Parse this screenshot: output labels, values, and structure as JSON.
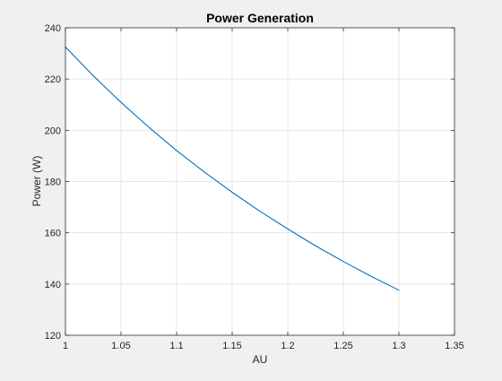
{
  "chart_data": {
    "type": "line",
    "title": "Power Generation",
    "xlabel": "AU",
    "ylabel": "Power (W)",
    "xlim": [
      1,
      1.35
    ],
    "ylim": [
      120,
      240
    ],
    "xticks": [
      "1",
      "1.05",
      "1.1",
      "1.15",
      "1.2",
      "1.25",
      "1.3",
      "1.35"
    ],
    "yticks": [
      "120",
      "140",
      "160",
      "180",
      "200",
      "220",
      "240"
    ],
    "grid": true,
    "series": [
      {
        "color": "#0072bd",
        "x": [
          1.0,
          1.025,
          1.05,
          1.075,
          1.1,
          1.125,
          1.15,
          1.175,
          1.2,
          1.225,
          1.25,
          1.275,
          1.3
        ],
        "y": [
          232.5,
          221.3,
          210.9,
          201.2,
          192.1,
          183.7,
          175.8,
          168.4,
          161.5,
          154.9,
          148.8,
          143.0,
          137.6
        ]
      }
    ]
  }
}
